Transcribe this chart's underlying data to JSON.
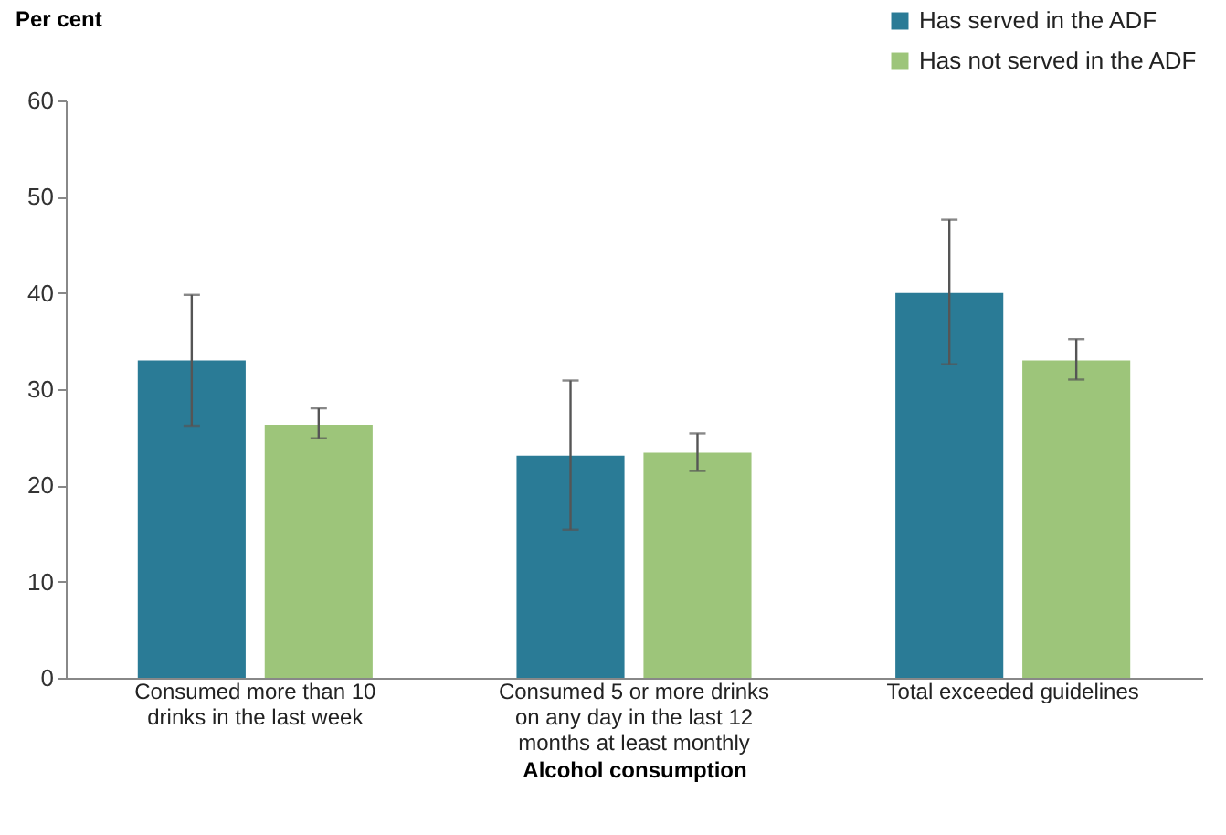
{
  "chart_data": {
    "type": "bar",
    "xlabel": "Alcohol consumption",
    "ylabel": "Per cent",
    "categories": [
      "Consumed more than 10 drinks in the last week",
      "Consumed 5 or more drinks on any day in the last 12 months at least monthly",
      "Total exceeded guidelines"
    ],
    "series": [
      {
        "name": "Has served in the ADF",
        "color": "#2a7b96",
        "values": [
          33.0,
          23.1,
          40.0
        ],
        "errors": [
          [
            26.2,
            39.8
          ],
          [
            15.4,
            30.9
          ],
          [
            32.6,
            47.6
          ]
        ]
      },
      {
        "name": "Has not served in the ADF",
        "color": "#9dc57a",
        "values": [
          26.3,
          23.4,
          33.0
        ],
        "errors": [
          [
            24.9,
            28.0
          ],
          [
            21.5,
            25.4
          ],
          [
            31.0,
            35.2
          ]
        ]
      }
    ],
    "ylim": [
      0,
      60
    ],
    "yticks": [
      0,
      10,
      20,
      30,
      40,
      50,
      60
    ],
    "grid": false,
    "legend": "top right"
  }
}
